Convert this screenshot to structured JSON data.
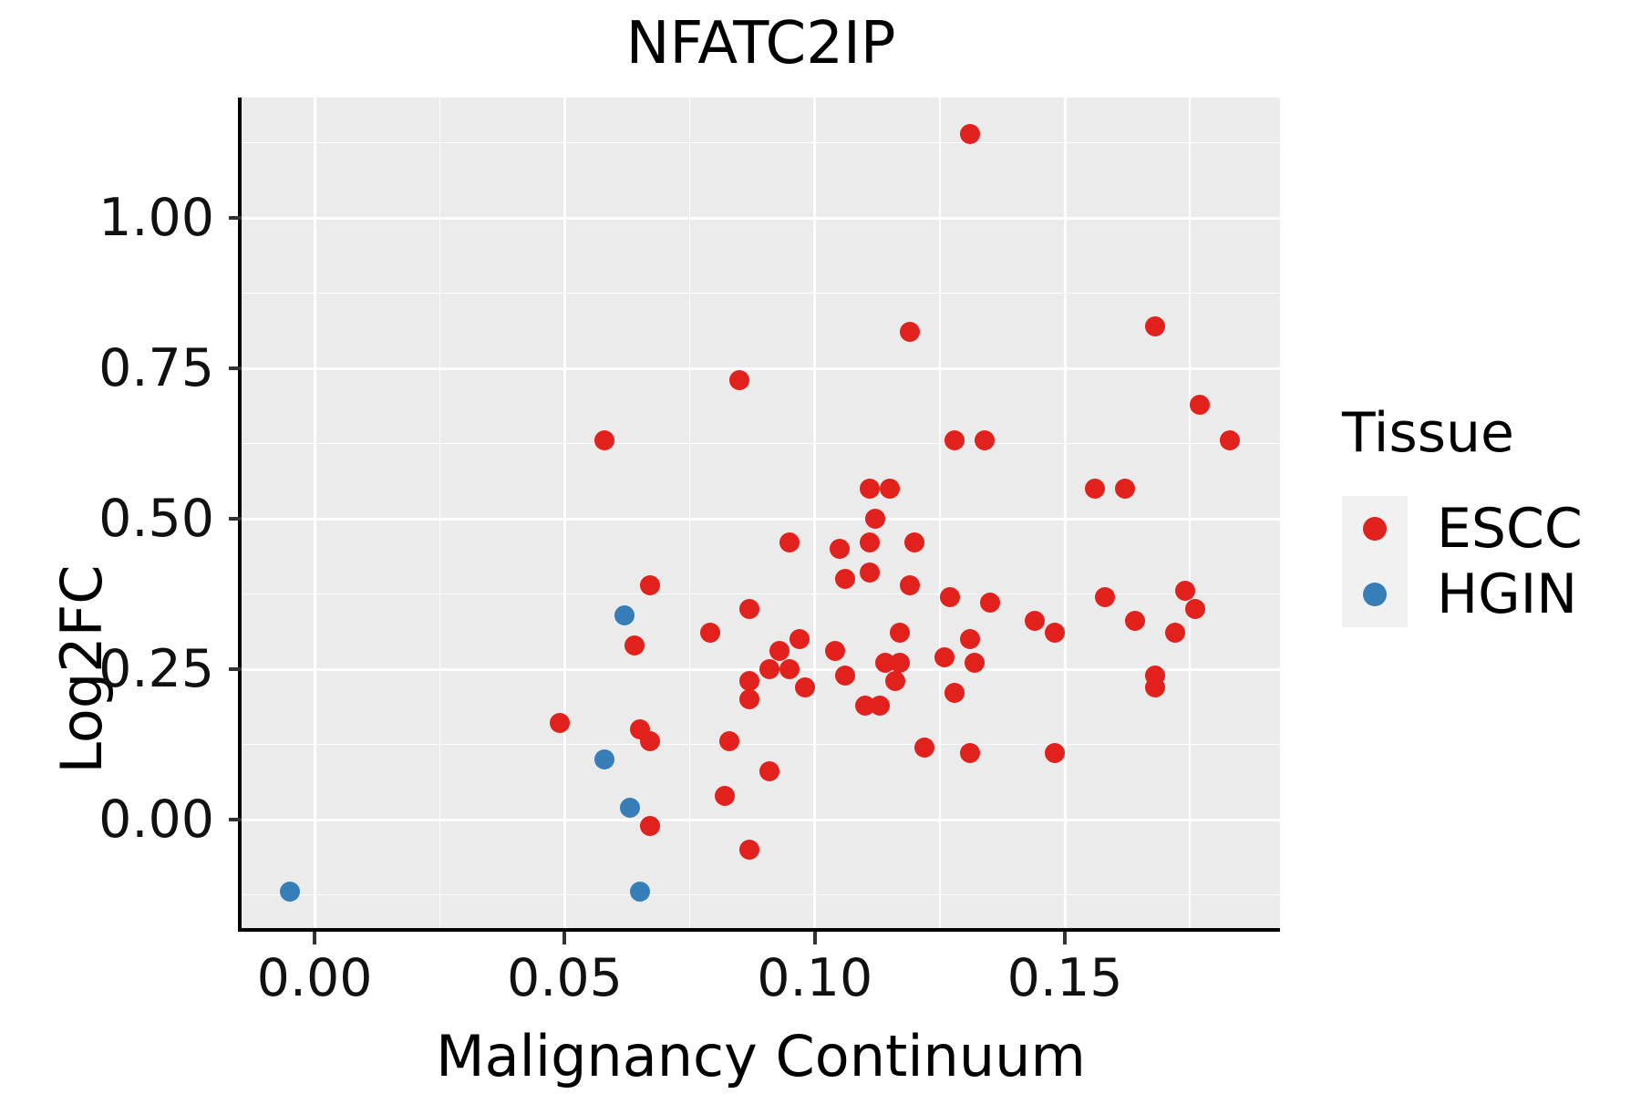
{
  "title": "NFATC2IP",
  "x_axis": {
    "label": "Malignancy Continuum",
    "tick_labels": [
      "0.00",
      "0.05",
      "0.10",
      "0.15"
    ]
  },
  "y_axis": {
    "label": "Log2FC",
    "tick_labels": [
      "1.00",
      "0.75",
      "0.50",
      "0.25",
      "0.00"
    ]
  },
  "legend": {
    "title": "Tissue",
    "items": [
      {
        "label": "ESCC",
        "color": "#E2211C"
      },
      {
        "label": "HGIN",
        "color": "#377EB8"
      }
    ]
  },
  "style": {
    "panel_bg": "#EBEBEB",
    "grid_color": "#FFFFFF",
    "axis_color": "#000000"
  },
  "chart_data": {
    "type": "scatter",
    "title": "NFATC2IP",
    "xlabel": "Malignancy Continuum",
    "ylabel": "Log2FC",
    "xlim": [
      -0.0146,
      0.193
    ],
    "ylim": [
      -0.1833,
      1.2
    ],
    "x_major_ticks": [
      0.0,
      0.05,
      0.1,
      0.15
    ],
    "x_minor_ticks": [
      0.025,
      0.075,
      0.125,
      0.175
    ],
    "y_major_ticks": [
      1.0,
      0.75,
      0.5,
      0.25,
      0.0
    ],
    "y_minor_ticks": [
      1.125,
      0.875,
      0.625,
      0.375,
      0.125,
      -0.125
    ],
    "grid": true,
    "legend_position": "right",
    "series": [
      {
        "name": "ESCC",
        "color": "#E2211C",
        "points": [
          [
            0.058,
            0.63
          ],
          [
            0.131,
            1.14
          ],
          [
            0.119,
            0.81
          ],
          [
            0.085,
            0.73
          ],
          [
            0.128,
            0.63
          ],
          [
            0.134,
            0.63
          ],
          [
            0.111,
            0.55
          ],
          [
            0.115,
            0.55
          ],
          [
            0.156,
            0.55
          ],
          [
            0.162,
            0.55
          ],
          [
            0.168,
            0.82
          ],
          [
            0.177,
            0.69
          ],
          [
            0.183,
            0.63
          ],
          [
            0.158,
            0.37
          ],
          [
            0.164,
            0.33
          ],
          [
            0.174,
            0.38
          ],
          [
            0.176,
            0.35
          ],
          [
            0.172,
            0.31
          ],
          [
            0.168,
            0.24
          ],
          [
            0.168,
            0.22
          ],
          [
            0.095,
            0.46
          ],
          [
            0.112,
            0.5
          ],
          [
            0.105,
            0.45
          ],
          [
            0.111,
            0.46
          ],
          [
            0.12,
            0.46
          ],
          [
            0.106,
            0.4
          ],
          [
            0.111,
            0.41
          ],
          [
            0.119,
            0.39
          ],
          [
            0.127,
            0.37
          ],
          [
            0.135,
            0.36
          ],
          [
            0.087,
            0.35
          ],
          [
            0.079,
            0.31
          ],
          [
            0.144,
            0.33
          ],
          [
            0.148,
            0.31
          ],
          [
            0.093,
            0.28
          ],
          [
            0.097,
            0.3
          ],
          [
            0.091,
            0.25
          ],
          [
            0.095,
            0.25
          ],
          [
            0.098,
            0.22
          ],
          [
            0.087,
            0.23
          ],
          [
            0.087,
            0.2
          ],
          [
            0.104,
            0.28
          ],
          [
            0.106,
            0.24
          ],
          [
            0.11,
            0.19
          ],
          [
            0.113,
            0.19
          ],
          [
            0.114,
            0.26
          ],
          [
            0.117,
            0.26
          ],
          [
            0.116,
            0.23
          ],
          [
            0.117,
            0.31
          ],
          [
            0.126,
            0.27
          ],
          [
            0.131,
            0.3
          ],
          [
            0.132,
            0.26
          ],
          [
            0.128,
            0.21
          ],
          [
            0.083,
            0.13
          ],
          [
            0.122,
            0.12
          ],
          [
            0.131,
            0.11
          ],
          [
            0.148,
            0.11
          ],
          [
            0.091,
            0.08
          ],
          [
            0.082,
            0.04
          ],
          [
            0.087,
            -0.05
          ],
          [
            0.067,
            0.39
          ],
          [
            0.064,
            0.29
          ],
          [
            0.049,
            0.16
          ],
          [
            0.065,
            0.15
          ],
          [
            0.067,
            0.13
          ],
          [
            0.067,
            -0.01
          ]
        ]
      },
      {
        "name": "HGIN",
        "color": "#377EB8",
        "points": [
          [
            -0.005,
            -0.12
          ],
          [
            0.065,
            -0.12
          ],
          [
            0.062,
            0.34
          ],
          [
            0.058,
            0.1
          ],
          [
            0.063,
            0.02
          ]
        ]
      }
    ]
  }
}
